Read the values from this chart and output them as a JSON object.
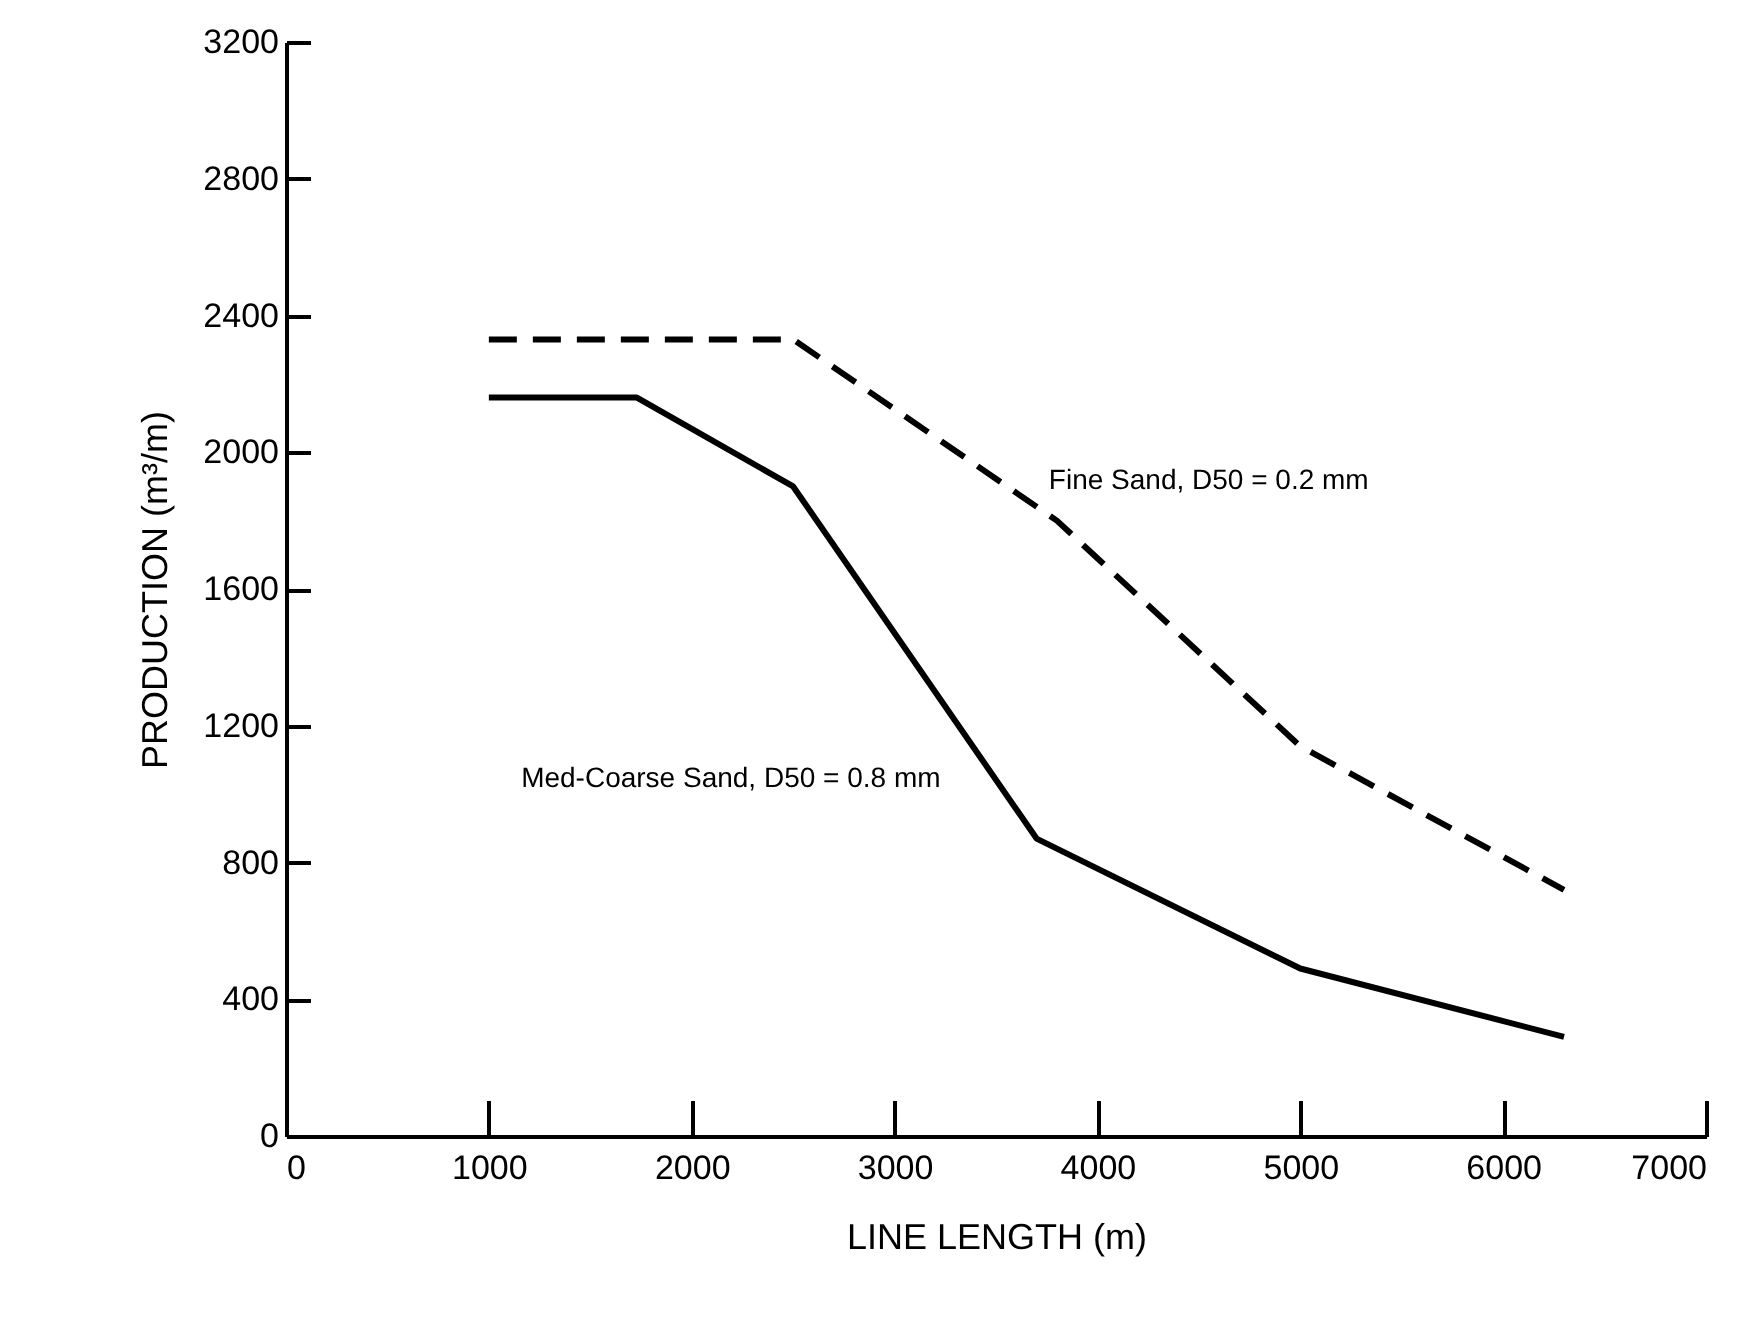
{
  "chart_data": {
    "type": "line",
    "xlabel": "LINE LENGTH (m)",
    "ylabel": "PRODUCTION (m³/m)",
    "xlim": [
      0,
      7000
    ],
    "xticks": [
      0,
      1000,
      2000,
      3000,
      4000,
      5000,
      6000,
      7000
    ],
    "ylim": [
      0,
      3200
    ],
    "yticks": [
      0,
      400,
      800,
      1200,
      1600,
      2000,
      2400,
      2800,
      3200
    ],
    "grid": false,
    "legend": false,
    "marker": "none",
    "series": [
      {
        "name": "Fine Sand, D50 = 0.2 mm",
        "color": "#000000",
        "line_style": "dashed",
        "x": [
          1000,
          2500,
          3800,
          5000,
          6300
        ],
        "values": [
          2330,
          2330,
          1800,
          1140,
          720
        ]
      },
      {
        "name": "Med-Coarse Sand, D50 = 0.8 mm",
        "color": "#000000",
        "line_style": "solid",
        "x": [
          1000,
          1730,
          2500,
          3700,
          5000,
          6300
        ],
        "values": [
          2160,
          2160,
          1900,
          870,
          490,
          290
        ]
      }
    ]
  }
}
